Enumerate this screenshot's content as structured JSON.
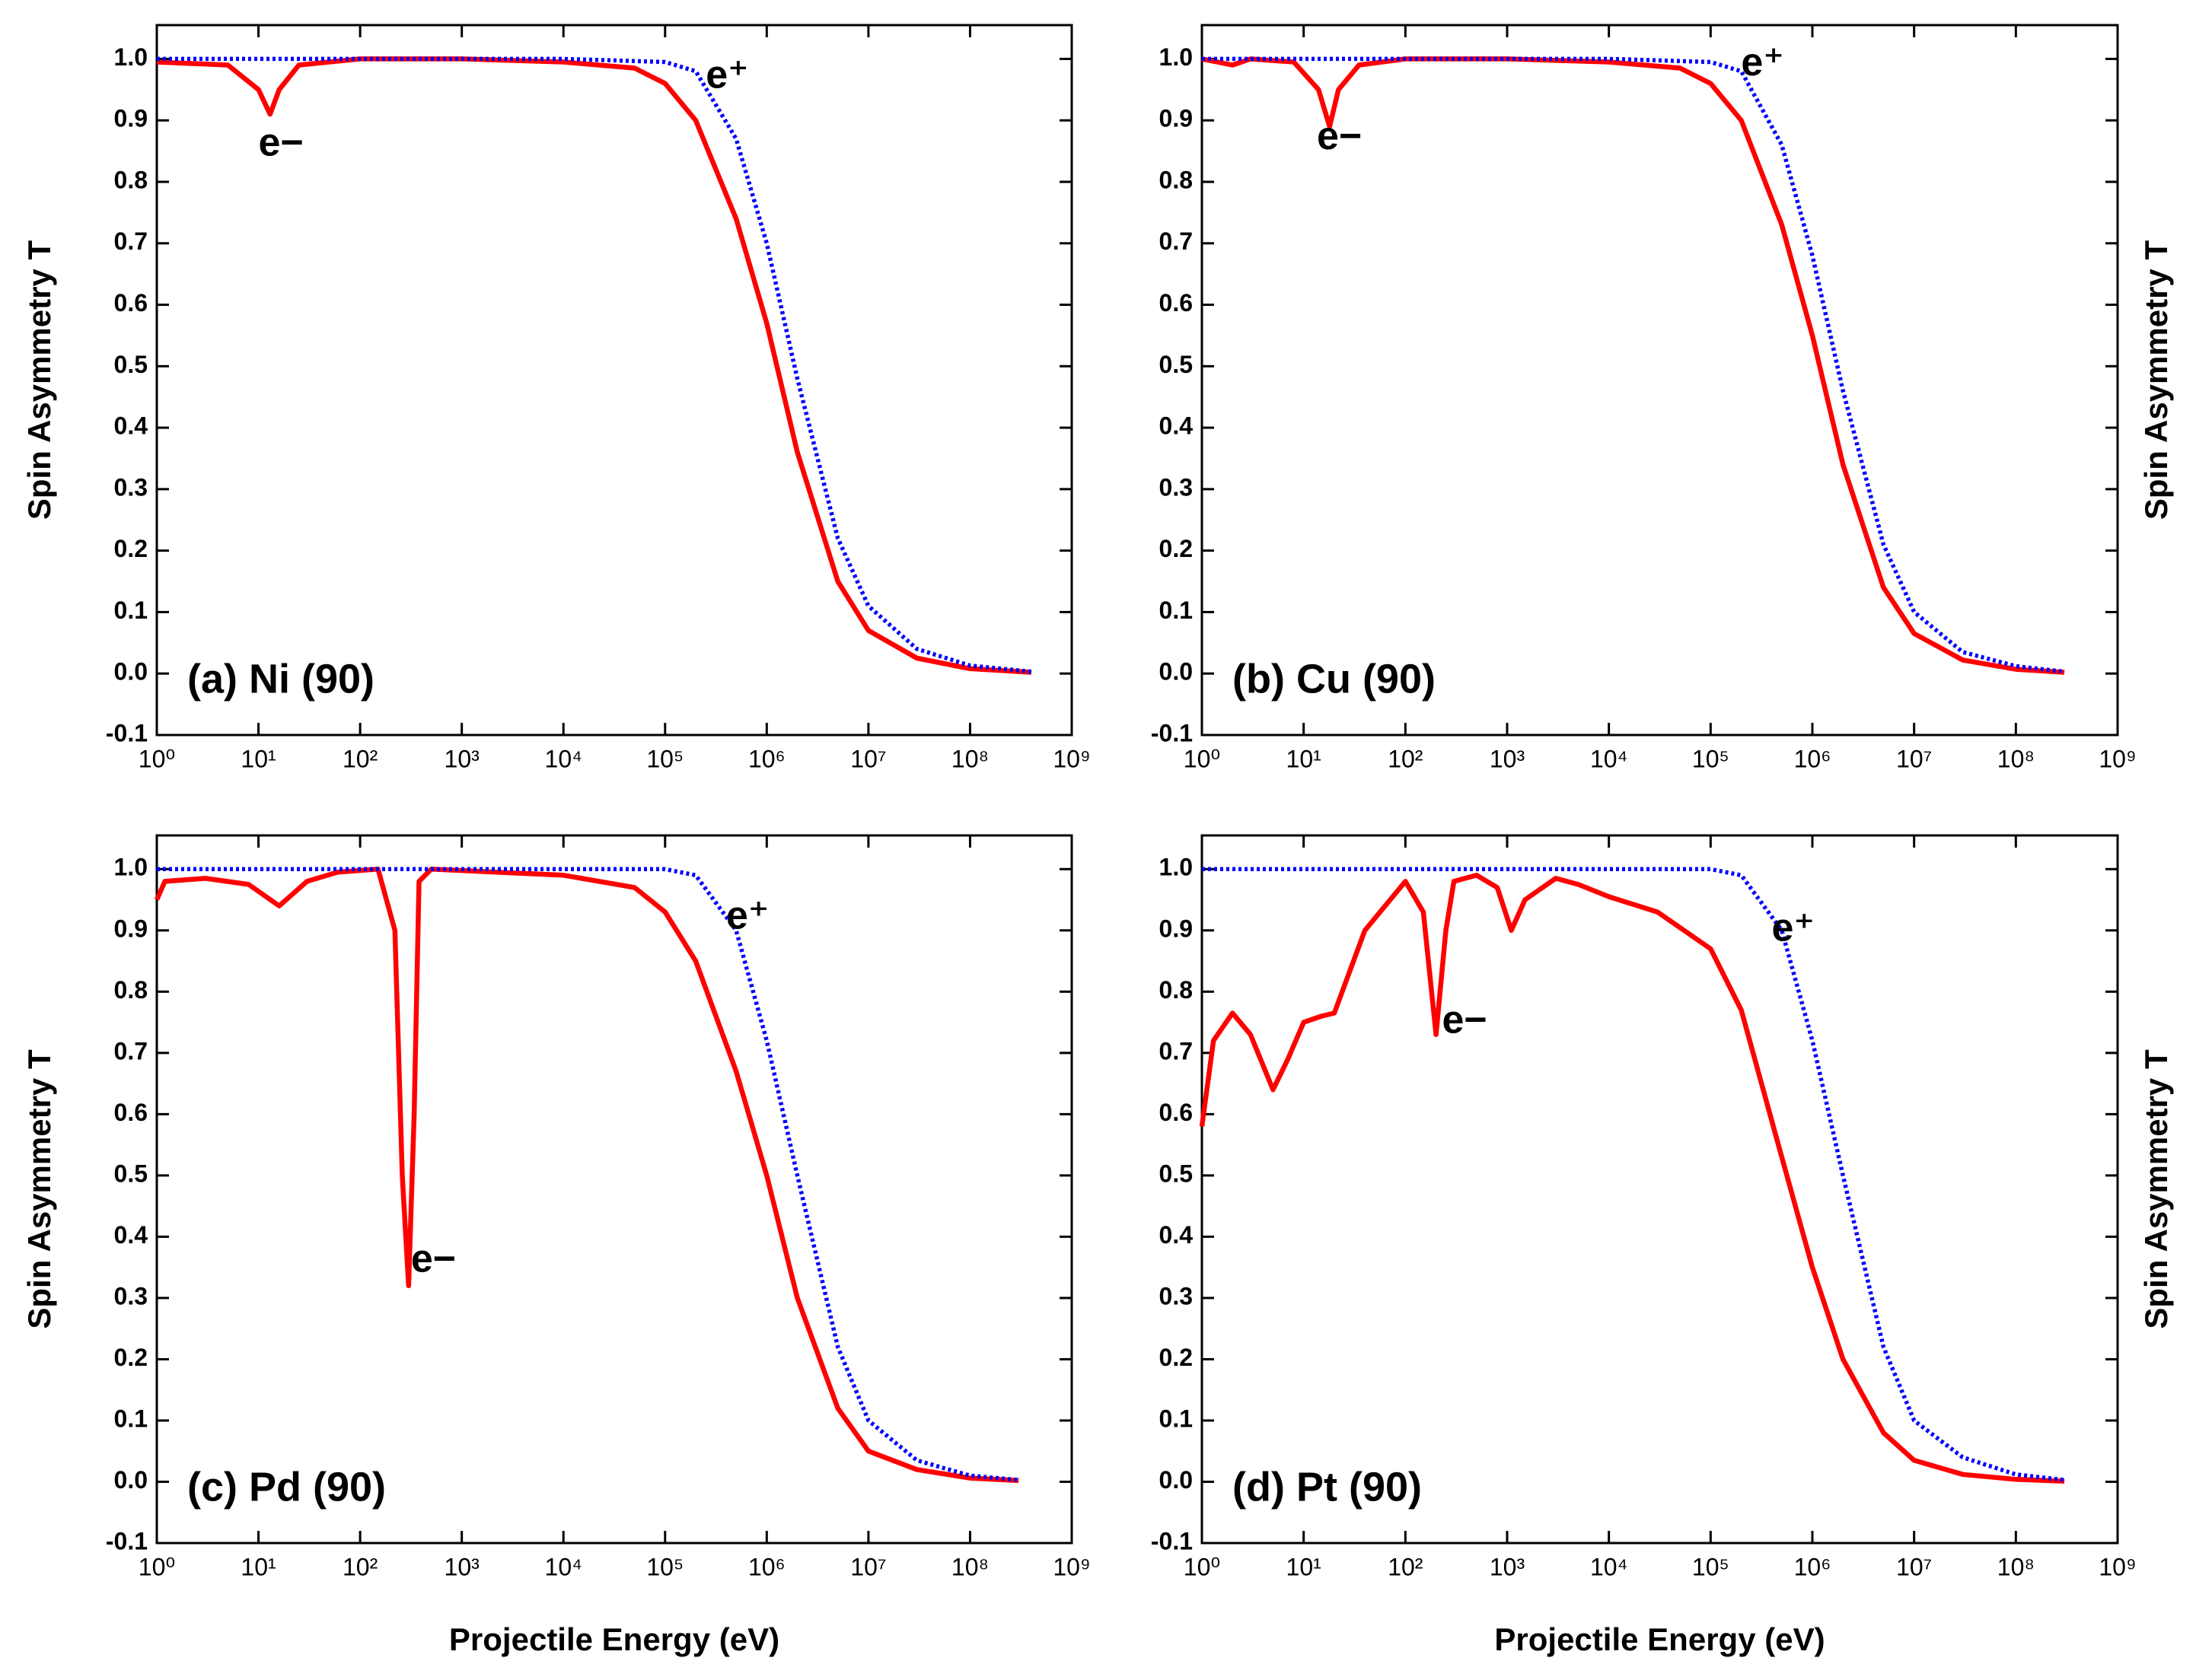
{
  "chart_data": [
    {
      "type": "line",
      "title": "(a) Ni (90)",
      "y_label": "Spin Asymmetry T",
      "log_x": true,
      "xlim": [
        1,
        1000000000
      ],
      "ylim": [
        -0.1,
        1.055
      ],
      "xticks": [
        {
          "value": 1,
          "label": "10⁰"
        },
        {
          "value": 10,
          "label": "10¹"
        },
        {
          "value": 100,
          "label": "10²"
        },
        {
          "value": 1000,
          "label": "10³"
        },
        {
          "value": 10000,
          "label": "10⁴"
        },
        {
          "value": 100000,
          "label": "10⁵"
        },
        {
          "value": 1000000,
          "label": "10⁶"
        },
        {
          "value": 10000000,
          "label": "10⁷"
        },
        {
          "value": 100000000,
          "label": "10⁸"
        },
        {
          "value": 1000000000,
          "label": "10⁹"
        }
      ],
      "yticks": [
        -0.1,
        {
          "value": 0,
          "label": "0.0"
        },
        0.1,
        0.2,
        0.3,
        0.4,
        0.5,
        0.6,
        0.7,
        0.8,
        0.9,
        {
          "value": 1,
          "label": "1.0"
        }
      ],
      "series": [
        {
          "name": "e−",
          "color": "#ff0000",
          "x": [
            1,
            5,
            10,
            13,
            16,
            25,
            100,
            1000,
            10000,
            50000,
            100000,
            200000,
            500000,
            1000000,
            2000000,
            5000000,
            10000000,
            30000000,
            100000000,
            400000000
          ],
          "values": [
            0.995,
            0.99,
            0.95,
            0.91,
            0.95,
            0.99,
            1.0,
            1.0,
            0.995,
            0.985,
            0.96,
            0.9,
            0.74,
            0.57,
            0.36,
            0.15,
            0.07,
            0.025,
            0.008,
            0.002
          ]
        },
        {
          "name": "e⁺",
          "color": "#0000ff",
          "x": [
            1,
            10000,
            100000,
            200000,
            500000,
            1000000,
            2000000,
            5000000,
            10000000,
            30000000,
            100000000,
            400000000
          ],
          "values": [
            1.0,
            1.0,
            0.995,
            0.98,
            0.87,
            0.7,
            0.48,
            0.22,
            0.11,
            0.04,
            0.013,
            0.003
          ]
        }
      ]
    },
    {
      "type": "line",
      "title": "(b) Cu (90)",
      "y_label": "Spin Asymmetry T",
      "log_x": true,
      "xlim": [
        1,
        1000000000
      ],
      "ylim": [
        -0.1,
        1.055
      ],
      "xticks": [
        {
          "value": 1,
          "label": "10⁰"
        },
        {
          "value": 10,
          "label": "10¹"
        },
        {
          "value": 100,
          "label": "10²"
        },
        {
          "value": 1000,
          "label": "10³"
        },
        {
          "value": 10000,
          "label": "10⁴"
        },
        {
          "value": 100000,
          "label": "10⁵"
        },
        {
          "value": 1000000,
          "label": "10⁶"
        },
        {
          "value": 10000000,
          "label": "10⁷"
        },
        {
          "value": 100000000,
          "label": "10⁸"
        },
        {
          "value": 1000000000,
          "label": "10⁹"
        }
      ],
      "yticks": [
        -0.1,
        {
          "value": 0,
          "label": "0.0"
        },
        0.1,
        0.2,
        0.3,
        0.4,
        0.5,
        0.6,
        0.7,
        0.8,
        0.9,
        {
          "value": 1,
          "label": "1.0"
        }
      ],
      "series": [
        {
          "name": "e−",
          "color": "#ff0000",
          "x": [
            1,
            2,
            3,
            8,
            14,
            18,
            22,
            35,
            100,
            1000,
            10000,
            50000,
            100000,
            200000,
            500000,
            1000000,
            2000000,
            5000000,
            10000000,
            30000000,
            100000000,
            300000000
          ],
          "values": [
            1.0,
            0.99,
            1.0,
            0.995,
            0.95,
            0.89,
            0.95,
            0.99,
            1.0,
            1.0,
            0.995,
            0.985,
            0.96,
            0.9,
            0.73,
            0.55,
            0.34,
            0.14,
            0.065,
            0.022,
            0.007,
            0.002
          ]
        },
        {
          "name": "e⁺",
          "color": "#0000ff",
          "x": [
            1,
            10000,
            100000,
            200000,
            500000,
            1000000,
            2000000,
            5000000,
            10000000,
            30000000,
            100000000,
            300000000
          ],
          "values": [
            1.0,
            1.0,
            0.995,
            0.98,
            0.86,
            0.68,
            0.46,
            0.21,
            0.1,
            0.035,
            0.012,
            0.003
          ]
        }
      ]
    },
    {
      "type": "line",
      "title": "(c) Pd (90)",
      "x_label": "Projectile Energy (eV)",
      "y_label": "Spin Asymmetry T",
      "log_x": true,
      "xlim": [
        1,
        1000000000
      ],
      "ylim": [
        -0.1,
        1.055
      ],
      "xticks": [
        {
          "value": 1,
          "label": "10⁰"
        },
        {
          "value": 10,
          "label": "10¹"
        },
        {
          "value": 100,
          "label": "10²"
        },
        {
          "value": 1000,
          "label": "10³"
        },
        {
          "value": 10000,
          "label": "10⁴"
        },
        {
          "value": 100000,
          "label": "10⁵"
        },
        {
          "value": 1000000,
          "label": "10⁶"
        },
        {
          "value": 10000000,
          "label": "10⁷"
        },
        {
          "value": 100000000,
          "label": "10⁸"
        },
        {
          "value": 1000000000,
          "label": "10⁹"
        }
      ],
      "yticks": [
        -0.1,
        {
          "value": 0,
          "label": "0.0"
        },
        0.1,
        0.2,
        0.3,
        0.4,
        0.5,
        0.6,
        0.7,
        0.8,
        0.9,
        {
          "value": 1,
          "label": "1.0"
        }
      ],
      "series": [
        {
          "name": "e−",
          "color": "#ff0000",
          "x": [
            1,
            1.2,
            3,
            8,
            16,
            30,
            60,
            150,
            220,
            260,
            300,
            340,
            380,
            500,
            10000,
            50000,
            100000,
            200000,
            500000,
            1000000,
            2000000,
            5000000,
            10000000,
            30000000,
            100000000,
            300000000
          ],
          "values": [
            0.95,
            0.98,
            0.985,
            0.975,
            0.94,
            0.98,
            0.995,
            1.0,
            0.9,
            0.5,
            0.32,
            0.6,
            0.98,
            1.0,
            0.99,
            0.97,
            0.93,
            0.85,
            0.67,
            0.5,
            0.3,
            0.12,
            0.05,
            0.02,
            0.006,
            0.002
          ]
        },
        {
          "name": "e⁺",
          "color": "#0000ff",
          "x": [
            1,
            10000,
            100000,
            200000,
            500000,
            1000000,
            2000000,
            5000000,
            10000000,
            30000000,
            100000000,
            300000000
          ],
          "values": [
            1.0,
            1.0,
            1.0,
            0.99,
            0.9,
            0.72,
            0.5,
            0.22,
            0.1,
            0.035,
            0.01,
            0.003
          ]
        }
      ]
    },
    {
      "type": "line",
      "title": "(d) Pt (90)",
      "x_label": "Projectile Energy (eV)",
      "y_label": "Spin Asymmetry T",
      "log_x": true,
      "xlim": [
        1,
        1000000000
      ],
      "ylim": [
        -0.1,
        1.055
      ],
      "xticks": [
        {
          "value": 1,
          "label": "10⁰"
        },
        {
          "value": 10,
          "label": "10¹"
        },
        {
          "value": 100,
          "label": "10²"
        },
        {
          "value": 1000,
          "label": "10³"
        },
        {
          "value": 10000,
          "label": "10⁴"
        },
        {
          "value": 100000,
          "label": "10⁵"
        },
        {
          "value": 1000000,
          "label": "10⁶"
        },
        {
          "value": 10000000,
          "label": "10⁷"
        },
        {
          "value": 100000000,
          "label": "10⁸"
        },
        {
          "value": 1000000000,
          "label": "10⁹"
        }
      ],
      "yticks": [
        -0.1,
        {
          "value": 0,
          "label": "0.0"
        },
        0.1,
        0.2,
        0.3,
        0.4,
        0.5,
        0.6,
        0.7,
        0.8,
        0.9,
        {
          "value": 1,
          "label": "1.0"
        }
      ],
      "series": [
        {
          "name": "e−",
          "color": "#ff0000",
          "x": [
            1,
            1.3,
            2,
            3,
            5,
            7,
            10,
            15,
            20,
            40,
            100,
            150,
            200,
            250,
            300,
            500,
            800,
            1100,
            1500,
            3000,
            5000,
            10000,
            30000,
            100000,
            200000,
            500000,
            1000000,
            2000000,
            5000000,
            10000000,
            30000000,
            100000000,
            300000000
          ],
          "values": [
            0.58,
            0.72,
            0.765,
            0.73,
            0.64,
            0.69,
            0.75,
            0.76,
            0.765,
            0.9,
            0.98,
            0.93,
            0.73,
            0.9,
            0.98,
            0.99,
            0.97,
            0.9,
            0.95,
            0.985,
            0.975,
            0.955,
            0.93,
            0.87,
            0.77,
            0.53,
            0.35,
            0.2,
            0.08,
            0.035,
            0.012,
            0.004,
            0.001
          ]
        },
        {
          "name": "e⁺",
          "color": "#0000ff",
          "x": [
            1,
            10000,
            100000,
            200000,
            500000,
            1000000,
            2000000,
            5000000,
            10000000,
            30000000,
            100000000,
            300000000
          ],
          "values": [
            1.0,
            1.0,
            1.0,
            0.99,
            0.9,
            0.72,
            0.5,
            0.22,
            0.1,
            0.04,
            0.012,
            0.003
          ]
        }
      ]
    }
  ]
}
